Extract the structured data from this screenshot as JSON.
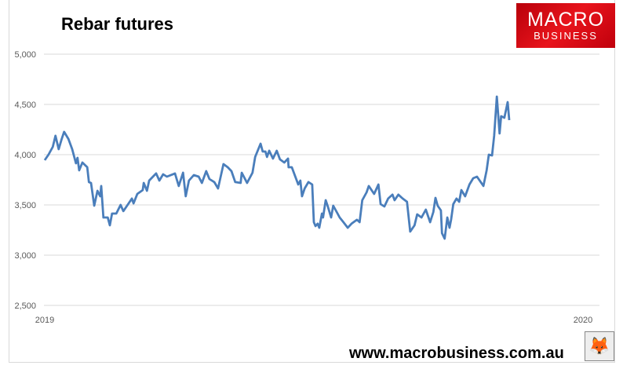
{
  "chart_data": {
    "type": "line",
    "title": "Rebar futures",
    "xlabel": "",
    "ylabel": "",
    "ylim": [
      2500,
      5000
    ],
    "xlim": [
      2019,
      2020
    ],
    "y_ticks": [
      "2,500",
      "3,000",
      "3,500",
      "4,000",
      "4,500",
      "5,000"
    ],
    "y_tick_values": [
      2500,
      3000,
      3500,
      4000,
      4500,
      5000
    ],
    "x_ticks": [
      "2019",
      "2020"
    ],
    "x_tick_values": [
      2019,
      2020
    ],
    "grid": "horizontal",
    "legend": "none",
    "color": "#4a7ebb",
    "points": [
      [
        2019.0,
        3945
      ],
      [
        2019.007,
        4000
      ],
      [
        2019.015,
        4078
      ],
      [
        2019.02,
        4188
      ],
      [
        2019.026,
        4055
      ],
      [
        2019.031,
        4148
      ],
      [
        2019.036,
        4227
      ],
      [
        2019.044,
        4156
      ],
      [
        2019.051,
        4055
      ],
      [
        2019.058,
        3914
      ],
      [
        2019.061,
        3969
      ],
      [
        2019.064,
        3844
      ],
      [
        2019.07,
        3922
      ],
      [
        2019.079,
        3875
      ],
      [
        2019.082,
        3727
      ],
      [
        2019.086,
        3719
      ],
      [
        2019.092,
        3492
      ],
      [
        2019.098,
        3641
      ],
      [
        2019.103,
        3586
      ],
      [
        2019.105,
        3688
      ],
      [
        2019.109,
        3375
      ],
      [
        2019.117,
        3375
      ],
      [
        2019.121,
        3297
      ],
      [
        2019.125,
        3414
      ],
      [
        2019.133,
        3414
      ],
      [
        2019.141,
        3500
      ],
      [
        2019.146,
        3438
      ],
      [
        2019.155,
        3508
      ],
      [
        2019.162,
        3563
      ],
      [
        2019.165,
        3516
      ],
      [
        2019.172,
        3609
      ],
      [
        2019.182,
        3648
      ],
      [
        2019.184,
        3719
      ],
      [
        2019.19,
        3641
      ],
      [
        2019.194,
        3742
      ],
      [
        2019.204,
        3797
      ],
      [
        2019.207,
        3813
      ],
      [
        2019.213,
        3742
      ],
      [
        2019.22,
        3805
      ],
      [
        2019.227,
        3781
      ],
      [
        2019.242,
        3813
      ],
      [
        2019.249,
        3688
      ],
      [
        2019.257,
        3820
      ],
      [
        2019.262,
        3586
      ],
      [
        2019.268,
        3742
      ],
      [
        2019.277,
        3797
      ],
      [
        2019.286,
        3781
      ],
      [
        2019.292,
        3719
      ],
      [
        2019.3,
        3836
      ],
      [
        2019.306,
        3758
      ],
      [
        2019.315,
        3727
      ],
      [
        2019.322,
        3664
      ],
      [
        2019.332,
        3906
      ],
      [
        2019.34,
        3875
      ],
      [
        2019.347,
        3836
      ],
      [
        2019.354,
        3727
      ],
      [
        2019.364,
        3719
      ],
      [
        2019.366,
        3820
      ],
      [
        2019.376,
        3719
      ],
      [
        2019.386,
        3820
      ],
      [
        2019.391,
        3977
      ],
      [
        2019.401,
        4109
      ],
      [
        2019.405,
        4031
      ],
      [
        2019.41,
        4031
      ],
      [
        2019.413,
        3977
      ],
      [
        2019.417,
        4039
      ],
      [
        2019.424,
        3961
      ],
      [
        2019.431,
        4039
      ],
      [
        2019.437,
        3953
      ],
      [
        2019.445,
        3922
      ],
      [
        2019.452,
        3961
      ],
      [
        2019.453,
        3875
      ],
      [
        2019.459,
        3875
      ],
      [
        2019.471,
        3703
      ],
      [
        2019.475,
        3742
      ],
      [
        2019.478,
        3586
      ],
      [
        2019.483,
        3664
      ],
      [
        2019.49,
        3727
      ],
      [
        2019.497,
        3703
      ],
      [
        2019.5,
        3328
      ],
      [
        2019.503,
        3289
      ],
      [
        2019.507,
        3313
      ],
      [
        2019.51,
        3273
      ],
      [
        2019.515,
        3414
      ],
      [
        2019.517,
        3375
      ],
      [
        2019.522,
        3547
      ],
      [
        2019.526,
        3484
      ],
      [
        2019.532,
        3375
      ],
      [
        2019.536,
        3492
      ],
      [
        2019.544,
        3414
      ],
      [
        2019.548,
        3375
      ],
      [
        2019.555,
        3328
      ],
      [
        2019.563,
        3273
      ],
      [
        2019.57,
        3313
      ],
      [
        2019.58,
        3352
      ],
      [
        2019.585,
        3328
      ],
      [
        2019.59,
        3547
      ],
      [
        2019.598,
        3625
      ],
      [
        2019.602,
        3688
      ],
      [
        2019.612,
        3609
      ],
      [
        2019.62,
        3703
      ],
      [
        2019.624,
        3508
      ],
      [
        2019.631,
        3484
      ],
      [
        2019.638,
        3563
      ],
      [
        2019.646,
        3602
      ],
      [
        2019.65,
        3547
      ],
      [
        2019.657,
        3602
      ],
      [
        2019.665,
        3563
      ],
      [
        2019.673,
        3531
      ],
      [
        2019.679,
        3234
      ],
      [
        2019.687,
        3297
      ],
      [
        2019.692,
        3406
      ],
      [
        2019.7,
        3375
      ],
      [
        2019.708,
        3453
      ],
      [
        2019.716,
        3328
      ],
      [
        2019.722,
        3430
      ],
      [
        2019.726,
        3570
      ],
      [
        2019.73,
        3492
      ],
      [
        2019.736,
        3445
      ],
      [
        2019.738,
        3219
      ],
      [
        2019.743,
        3164
      ],
      [
        2019.748,
        3375
      ],
      [
        2019.752,
        3273
      ],
      [
        2019.755,
        3352
      ],
      [
        2019.759,
        3508
      ],
      [
        2019.765,
        3563
      ],
      [
        2019.77,
        3531
      ],
      [
        2019.774,
        3648
      ],
      [
        2019.781,
        3586
      ],
      [
        2019.789,
        3703
      ],
      [
        2019.796,
        3766
      ],
      [
        2019.803,
        3781
      ],
      [
        2019.81,
        3727
      ],
      [
        2019.815,
        3688
      ],
      [
        2019.821,
        3844
      ],
      [
        2019.825,
        4000
      ],
      [
        2019.831,
        3992
      ],
      [
        2019.835,
        4188
      ],
      [
        2019.84,
        4578
      ],
      [
        2019.845,
        4211
      ],
      [
        2019.848,
        4383
      ],
      [
        2019.854,
        4367
      ],
      [
        2019.86,
        4523
      ],
      [
        2019.863,
        4344
      ]
    ]
  },
  "logo": {
    "line1": "MACRO",
    "line2": "BUSINESS"
  },
  "footer": {
    "url": "www.macrobusiness.com.au",
    "icon": "fox-icon"
  }
}
